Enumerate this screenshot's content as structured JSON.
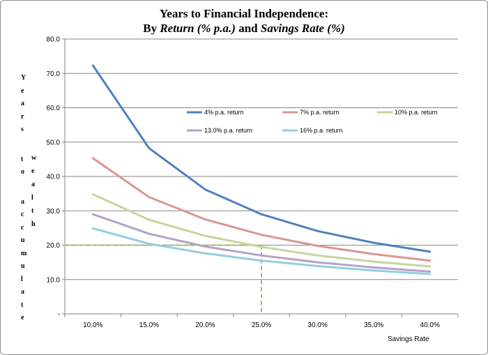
{
  "chart_data": {
    "type": "line",
    "title_line1": "Years to Financial  Independence:",
    "title_line2_prefix": "By ",
    "title_line2_italic1": "Return (% p.a.)",
    "title_line2_mid": " and ",
    "title_line2_italic2": "Savings Rate (%)",
    "xlabel": "Savings Rate",
    "ylabel_col1": "Years to accumulate",
    "ylabel_col2": "wealth",
    "categories": [
      "10.0%",
      "15.0%",
      "20.0%",
      "25.0%",
      "30.0%",
      "35.0%",
      "40.0%"
    ],
    "x": [
      10,
      15,
      20,
      25,
      30,
      35,
      40
    ],
    "ylim": [
      0,
      80
    ],
    "yticks": [
      0,
      10,
      20,
      30,
      40,
      50,
      60,
      70,
      80
    ],
    "ytick_labels": [
      "-",
      "10.0",
      "20.0",
      "30.0",
      "40.0",
      "50.0",
      "60.0",
      "70.0",
      "80.0"
    ],
    "grid": true,
    "legend_position": "top-right (inside plot)",
    "series": [
      {
        "name": "4% p.a. return",
        "color": "#4f81bd",
        "values": [
          72.3,
          48.2,
          36.2,
          29.0,
          24.1,
          20.7,
          18.1
        ]
      },
      {
        "name": "7% p.a. return",
        "color": "#d99694",
        "values": [
          45.3,
          34.0,
          27.5,
          23.0,
          19.8,
          17.4,
          15.5
        ]
      },
      {
        "name": "10% p.a. return",
        "color": "#c3d69b",
        "values": [
          34.8,
          27.4,
          22.7,
          19.5,
          17.0,
          15.2,
          13.8
        ]
      },
      {
        "name": "13.0% p.a. return",
        "color": "#b3a2c7",
        "values": [
          29.0,
          23.3,
          19.6,
          17.0,
          15.0,
          13.5,
          12.3
        ]
      },
      {
        "name": "16% p.a. return",
        "color": "#93cddd",
        "values": [
          24.9,
          20.4,
          17.6,
          15.5,
          13.9,
          12.6,
          11.6
        ]
      }
    ],
    "reference_lines": {
      "color": "#9bbb59",
      "x_value": 25,
      "y_value": 20
    }
  }
}
